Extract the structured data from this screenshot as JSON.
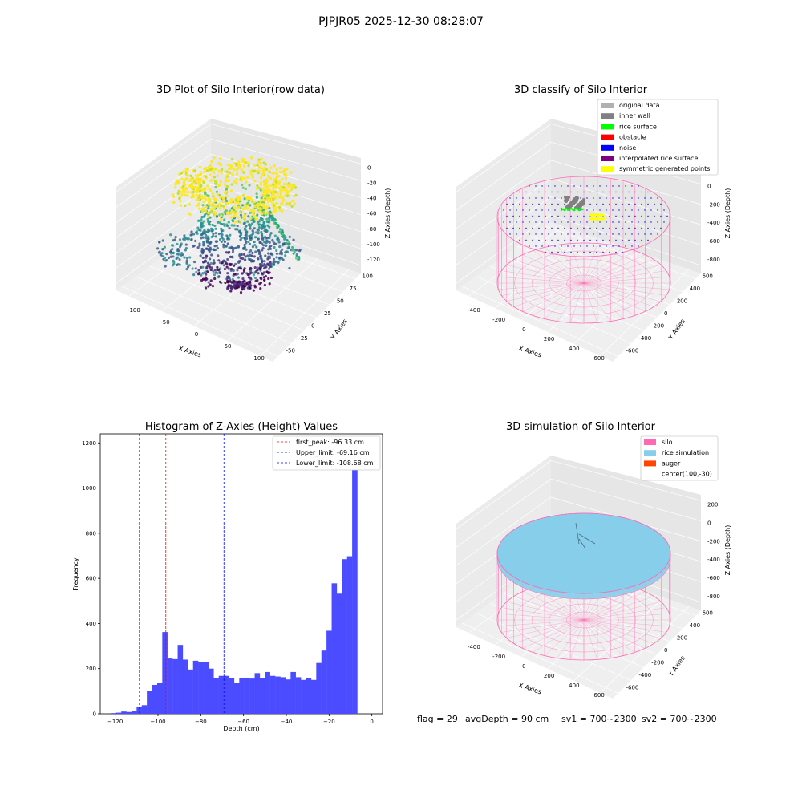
{
  "figure": {
    "suptitle": "PJPJR05 2025-12-30 08:28:07",
    "footer": {
      "flag": "flag = 29",
      "avg_depth": "avgDepth = 90 cm",
      "sv1": "sv1 = 700~2300",
      "sv2": "sv2 = 700~2300"
    }
  },
  "colors": {
    "hist_bar": "#4b4bff",
    "first_peak_line": "#ff0000",
    "limit_line": "#0000ff",
    "silo": "#ff69b4",
    "rice_simulation": "#87ceeb",
    "auger": "#ff4500",
    "original_data": "#b0b0b0",
    "inner_wall": "#808080",
    "rice_surface": "#00ff00",
    "obstacle": "#ff0000",
    "noise": "#0000ff",
    "interpolated_rice_surface": "#800080",
    "symmetric_generated_points": "#ffff00"
  },
  "chart_data": [
    {
      "type": "scatter3d",
      "title": "3D Plot of Silo Interior(row data)",
      "xlabel": "X Axies",
      "ylabel": "Y Axies",
      "zlabel": "Z Axies (Depth)",
      "x_ticks": [
        "-100",
        "-50",
        "0",
        "50",
        "100"
      ],
      "y_ticks": [
        "-50",
        "-25",
        "0",
        "25",
        "50",
        "75",
        "100"
      ],
      "z_ticks": [
        "0",
        "-20",
        "-40",
        "-60",
        "-80",
        "-100",
        "-120"
      ],
      "colormap": "viridis"
    },
    {
      "type": "scatter3d",
      "title": "3D classify of Silo Interior",
      "xlabel": "X Axies",
      "ylabel": "Y Axies",
      "zlabel": "Z Axies (Depth)",
      "x_ticks": [
        "-400",
        "-200",
        "0",
        "200",
        "400",
        "600"
      ],
      "y_ticks": [
        "-600",
        "-400",
        "-200",
        "0",
        "200",
        "400",
        "600"
      ],
      "z_ticks": [
        "200",
        "0",
        "-200",
        "-400",
        "-600",
        "-800"
      ],
      "legend": [
        "original data",
        "inner wall",
        "rice surface",
        "obstacle",
        "noise",
        "interpolated rice surface",
        "symmetric generated points"
      ],
      "legend_position": "top-right"
    },
    {
      "type": "bar",
      "title": "Histogram of Z-Axies (Height) Values",
      "xlabel": "Depth (cm)",
      "ylabel": "Frequency",
      "xlim": [
        -127,
        5
      ],
      "ylim": [
        0,
        1240
      ],
      "x_ticks": [
        -120,
        -100,
        -80,
        -60,
        -40,
        -20,
        0
      ],
      "y_ticks": [
        0,
        200,
        400,
        600,
        800,
        1000,
        1200
      ],
      "bin_width": 2.4,
      "bin_start": -122.0,
      "values": [
        3,
        5,
        10,
        8,
        14,
        30,
        38,
        102,
        128,
        135,
        362,
        245,
        242,
        305,
        240,
        196,
        235,
        228,
        228,
        200,
        158,
        168,
        168,
        158,
        136,
        158,
        160,
        156,
        180,
        158,
        185,
        168,
        165,
        162,
        152,
        185,
        162,
        150,
        158,
        150,
        225,
        280,
        368,
        578,
        532,
        685,
        698,
        1205
      ],
      "vlines": [
        {
          "label": "first_peak: -96.33 cm",
          "x": -96.33,
          "color": "red"
        },
        {
          "label": "Upper_limit: -69.16 cm",
          "x": -69.16,
          "color": "blue"
        },
        {
          "label": "Lower_limit: -108.68 cm",
          "x": -108.68,
          "color": "blue"
        }
      ],
      "legend_position": "top-right"
    },
    {
      "type": "surface3d",
      "title": "3D simulation of Silo Interior",
      "xlabel": "X Axies",
      "ylabel": "Y Axies",
      "zlabel": "Z Axies (Depth)",
      "x_ticks": [
        "-400",
        "-200",
        "0",
        "200",
        "400",
        "600"
      ],
      "y_ticks": [
        "-600",
        "-400",
        "-200",
        "0",
        "200",
        "400",
        "600"
      ],
      "z_ticks": [
        "200",
        "0",
        "-200",
        "-400",
        "-600",
        "-800"
      ],
      "legend": [
        "silo",
        "rice simulation",
        "auger",
        "center(100,-30)"
      ],
      "legend_position": "top-right"
    }
  ]
}
